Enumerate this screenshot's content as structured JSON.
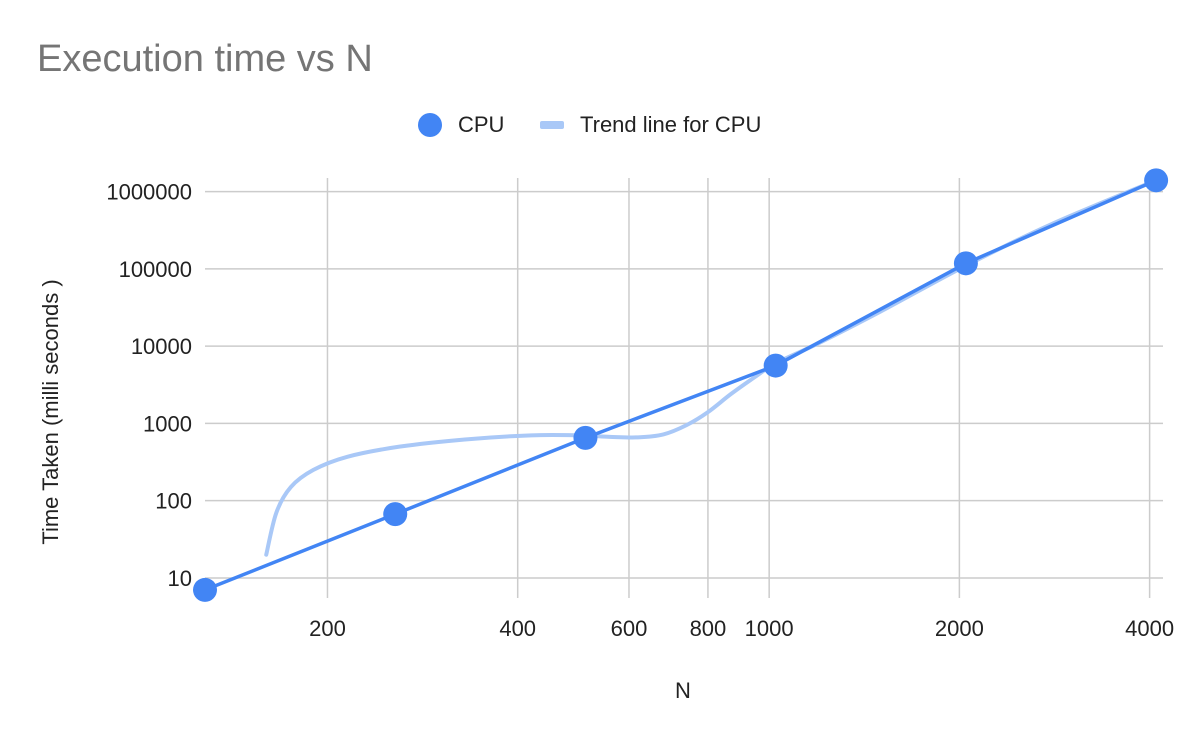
{
  "chart_data": {
    "type": "scatter",
    "title": "Execution time vs N",
    "xlabel": "N",
    "ylabel": "Time Taken (milli seconds )",
    "x_scale": "log",
    "y_scale": "log",
    "xlim": [
      128,
      4200
    ],
    "ylim": [
      5.5,
      1500000
    ],
    "x_ticks": [
      200,
      400,
      600,
      800,
      1000,
      2000,
      4000
    ],
    "x_tick_labels": [
      "200",
      "400",
      "600",
      "800",
      "1000",
      "2000",
      "4000"
    ],
    "y_ticks": [
      10,
      100,
      1000,
      10000,
      100000,
      1000000
    ],
    "y_tick_labels": [
      "10",
      "100",
      "1000",
      "10000",
      "100000",
      "1000000"
    ],
    "grid": true,
    "legend_position": "top",
    "series": [
      {
        "name": "CPU",
        "kind": "scatter+line",
        "color": "#4285f4",
        "x": [
          128,
          256,
          512,
          1024,
          2048,
          4096
        ],
        "y": [
          7,
          67,
          650,
          5600,
          118000,
          1400000
        ]
      },
      {
        "name": "Trend line for CPU",
        "kind": "trendline",
        "color": "#a9c8f7",
        "x": [
          160,
          166,
          175,
          190,
          215,
          260,
          330,
          420,
          500,
          560,
          620,
          680,
          740,
          800,
          870,
          950,
          1024,
          1200,
          1500,
          2048,
          2800,
          4096
        ],
        "y": [
          20,
          70,
          150,
          250,
          370,
          500,
          620,
          700,
          700,
          670,
          660,
          720,
          950,
          1400,
          2400,
          4000,
          6000,
          11000,
          28000,
          110000,
          380000,
          1400000
        ]
      }
    ]
  }
}
